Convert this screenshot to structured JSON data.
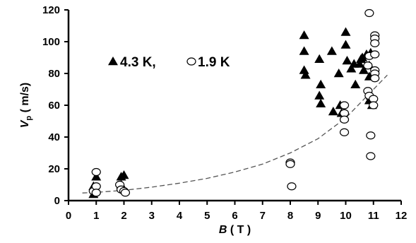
{
  "chart_data": {
    "type": "scatter",
    "xlabel": {
      "symbol": "B",
      "unit": "( T )"
    },
    "ylabel": {
      "symbol": "V",
      "subscript": "p",
      "unit": "( m/s)"
    },
    "xlim": [
      0,
      12
    ],
    "ylim": [
      0,
      120
    ],
    "x_ticks": [
      "0",
      "1",
      "2",
      "3",
      "4",
      "5",
      "6",
      "7",
      "8",
      "9",
      "10",
      "11",
      "12"
    ],
    "y_ticks": [
      "0",
      "20",
      "40",
      "60",
      "80",
      "100",
      "120"
    ],
    "grid": false,
    "legend": {
      "position": "upper-left",
      "entries": [
        {
          "marker": "filled-triangle",
          "label": "4.3 K,"
        },
        {
          "marker": "open-circle",
          "label": "1.9 K"
        }
      ]
    },
    "series": [
      {
        "marker": "filled-triangle",
        "color": "#000000",
        "points": [
          [
            0.9,
            4
          ],
          [
            0.9,
            9
          ],
          [
            1.0,
            15
          ],
          [
            1.9,
            10
          ],
          [
            1.9,
            15
          ],
          [
            2.0,
            16
          ],
          [
            8.5,
            104
          ],
          [
            8.5,
            94
          ],
          [
            8.5,
            82
          ],
          [
            8.55,
            79
          ],
          [
            9.05,
            89
          ],
          [
            9.05,
            66
          ],
          [
            9.1,
            73
          ],
          [
            9.1,
            61
          ],
          [
            9.5,
            94
          ],
          [
            9.55,
            56
          ],
          [
            9.75,
            80
          ],
          [
            9.8,
            60
          ],
          [
            9.85,
            55
          ],
          [
            10.0,
            106
          ],
          [
            10.0,
            98
          ],
          [
            10.05,
            88
          ],
          [
            10.2,
            83
          ],
          [
            10.3,
            86
          ],
          [
            10.35,
            73
          ],
          [
            10.5,
            86
          ],
          [
            10.55,
            89
          ],
          [
            10.6,
            90
          ],
          [
            10.65,
            82
          ],
          [
            10.75,
            92
          ],
          [
            10.85,
            85
          ],
          [
            10.9,
            93
          ],
          [
            10.85,
            78
          ],
          [
            10.85,
            63
          ],
          [
            10.9,
            66
          ],
          [
            10.95,
            60
          ]
        ]
      },
      {
        "marker": "open-circle",
        "color": "#000000",
        "points": [
          [
            0.9,
            6
          ],
          [
            1.0,
            9
          ],
          [
            1.0,
            18
          ],
          [
            1.0,
            5
          ],
          [
            1.85,
            10
          ],
          [
            1.9,
            7
          ],
          [
            2.0,
            6
          ],
          [
            2.05,
            5
          ],
          [
            8.0,
            24
          ],
          [
            8.0,
            23
          ],
          [
            8.05,
            9
          ],
          [
            9.95,
            60
          ],
          [
            9.95,
            55
          ],
          [
            9.95,
            51
          ],
          [
            9.95,
            43
          ],
          [
            10.85,
            118
          ],
          [
            10.85,
            91
          ],
          [
            10.8,
            85
          ],
          [
            10.8,
            69
          ],
          [
            10.85,
            66
          ],
          [
            10.9,
            41
          ],
          [
            10.9,
            28
          ],
          [
            11.05,
            104
          ],
          [
            11.05,
            102
          ],
          [
            11.05,
            99
          ],
          [
            11.05,
            92
          ],
          [
            11.05,
            82
          ],
          [
            11.05,
            80
          ],
          [
            11.05,
            77
          ],
          [
            11.0,
            64
          ],
          [
            11.0,
            60
          ]
        ]
      },
      {
        "marker": "dashed-line",
        "color": "#555555",
        "points": [
          [
            0.5,
            4.8
          ],
          [
            1,
            5.2
          ],
          [
            2,
            6.5
          ],
          [
            3,
            8.5
          ],
          [
            4,
            11
          ],
          [
            5,
            14
          ],
          [
            6,
            18
          ],
          [
            7,
            23
          ],
          [
            8,
            30
          ],
          [
            9,
            39
          ],
          [
            10,
            52
          ],
          [
            11,
            70
          ],
          [
            11.5,
            79
          ]
        ]
      }
    ]
  }
}
